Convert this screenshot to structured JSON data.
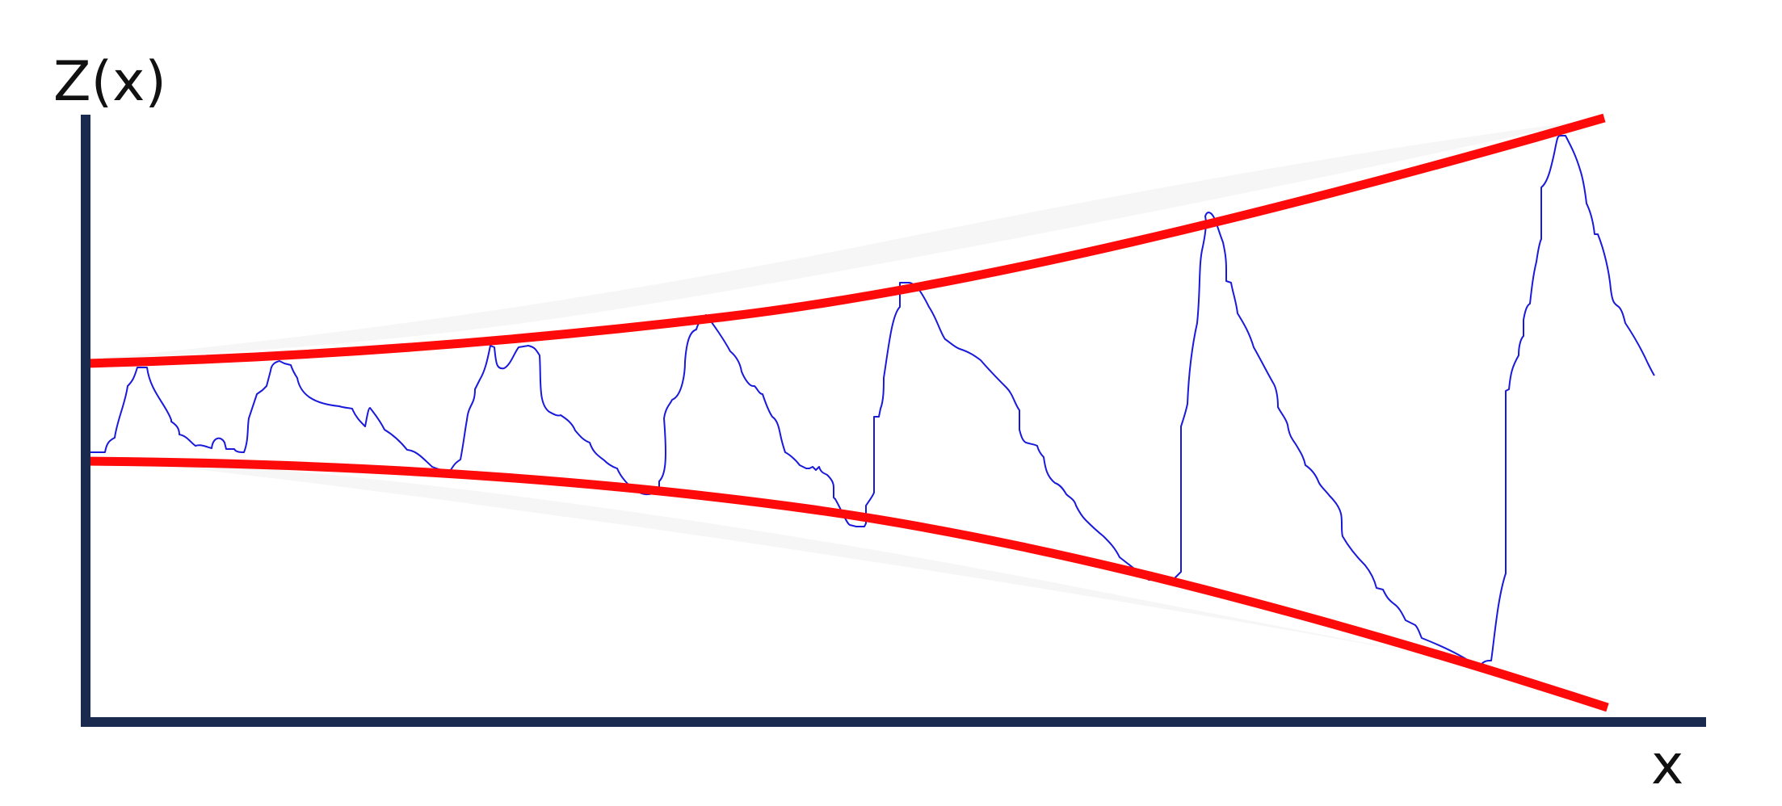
{
  "diagram": {
    "y_axis_label": "Z(x)",
    "x_axis_label": "x"
  },
  "colors": {
    "axis": "#1a2a4f",
    "envelope": "#ff0a0a",
    "signal": "#1a1adb",
    "shading": "#f6f6f6"
  }
}
